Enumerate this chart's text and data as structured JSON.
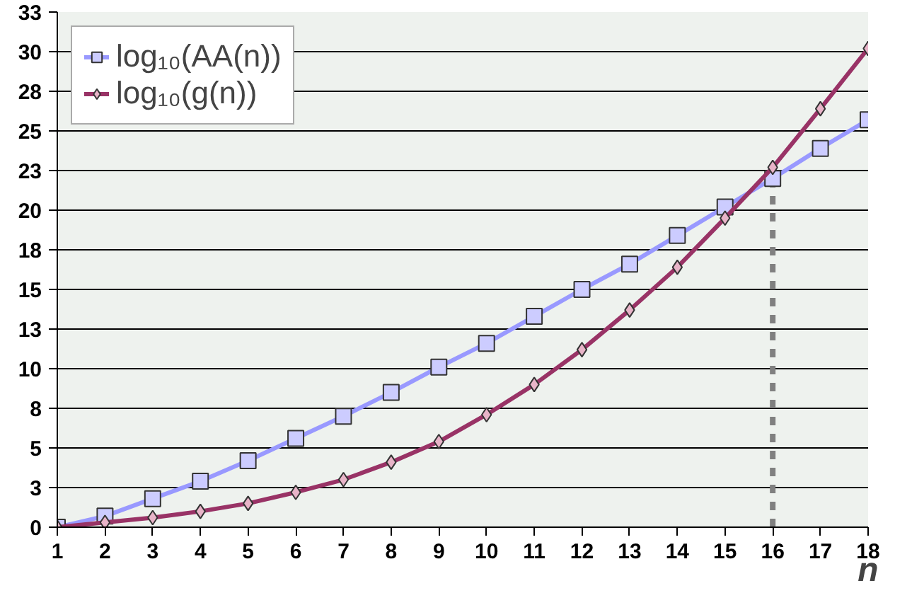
{
  "chart_data": {
    "type": "line",
    "xlabel": "n",
    "x": [
      1,
      2,
      3,
      4,
      5,
      6,
      7,
      8,
      9,
      10,
      11,
      12,
      13,
      14,
      15,
      16,
      17,
      18
    ],
    "xlim": [
      1,
      18
    ],
    "xticks": [
      1,
      2,
      3,
      4,
      5,
      6,
      7,
      8,
      9,
      10,
      11,
      12,
      13,
      14,
      15,
      16,
      17,
      18
    ],
    "ylim": [
      0,
      32.5
    ],
    "yticks": [
      0,
      {
        "value": 2.5,
        "label": "3"
      },
      5,
      {
        "value": 7.5,
        "label": "8"
      },
      10,
      {
        "value": 12.5,
        "label": "13"
      },
      15,
      {
        "value": 17.5,
        "label": "18"
      },
      20,
      {
        "value": 22.5,
        "label": "23"
      },
      25,
      {
        "value": 27.5,
        "label": "28"
      },
      30,
      {
        "value": 32.5,
        "label": "33"
      }
    ],
    "grid": "y",
    "legend": "top left",
    "series": [
      {
        "name": "log₁₀(AA(n))",
        "color": "#9999ff",
        "marker": "square",
        "values": [
          0,
          0.7,
          1.8,
          2.9,
          4.2,
          5.6,
          7,
          8.5,
          10.1,
          11.6,
          13.3,
          15,
          16.6,
          18.4,
          20.2,
          22,
          23.9,
          25.7
        ]
      },
      {
        "name": "log₁₀(g(n))",
        "color": "#993366",
        "marker": "diamond",
        "values": [
          0,
          0.3,
          0.6,
          1,
          1.5,
          2.2,
          3,
          4.1,
          5.4,
          7.1,
          9,
          11.2,
          13.7,
          16.4,
          19.5,
          22.7,
          26.4,
          30.2
        ]
      }
    ],
    "ref_lines": [
      {
        "axis": "x",
        "value": 16,
        "color": "#808080",
        "line_style": "dashed"
      }
    ]
  }
}
